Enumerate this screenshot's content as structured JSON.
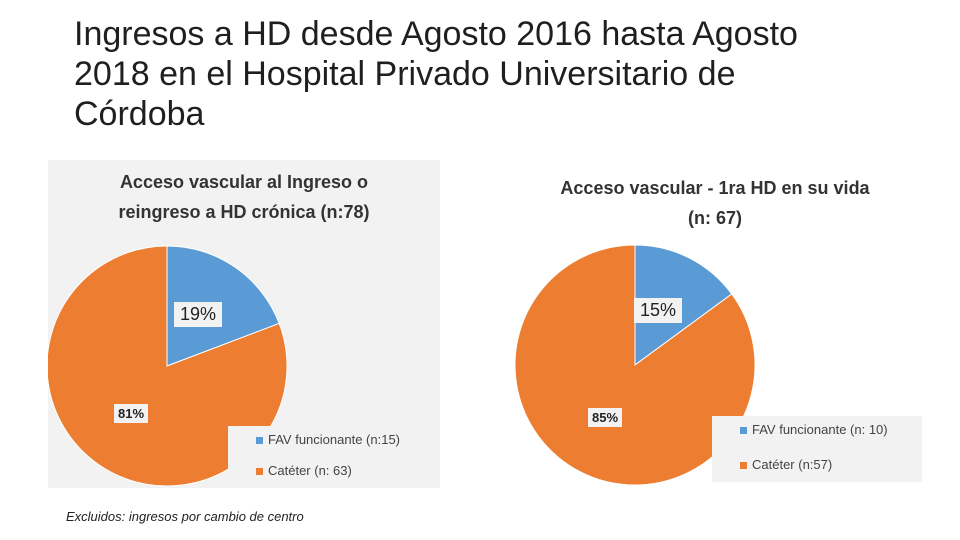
{
  "slide": {
    "title": "Ingresos a HD desde Agosto 2016 hasta Agosto 2018 en el Hospital Privado Universitario de Córdoba",
    "footnote": "Excluidos: ingresos por cambio de centro"
  },
  "colors": {
    "fav": "#5b9bd5",
    "cateter": "#ed7d31"
  },
  "chart_data": [
    {
      "type": "pie",
      "title": "Acceso vascular al Ingreso o reingreso a HD crónica (n:78)",
      "title_line1": "Acceso vascular al Ingreso o",
      "title_line2": "reingreso a HD crónica (n:78)",
      "categories": [
        "FAV funcionante (n:15)",
        "Catéter (n: 63)"
      ],
      "values": [
        15,
        63
      ],
      "percent_labels": [
        "19%",
        "81%"
      ],
      "legend_position": "bottom-right"
    },
    {
      "type": "pie",
      "title": "Acceso vascular - 1ra HD en su vida (n: 67)",
      "title_line1": "Acceso vascular - 1ra HD en su vida",
      "title_line2": "(n: 67)",
      "categories": [
        "FAV funcionante (n: 10)",
        "Catéter (n:57)"
      ],
      "values": [
        10,
        57
      ],
      "percent_labels": [
        "15%",
        "85%"
      ],
      "legend_position": "bottom-right"
    }
  ]
}
